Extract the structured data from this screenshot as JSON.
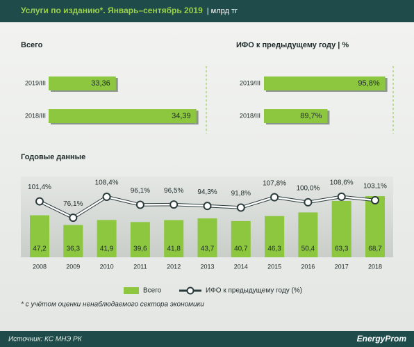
{
  "header": {
    "title": "Услуги по изданию*. Январь–сентябрь 2019",
    "unit": "| млрд тг"
  },
  "chart_data": [
    {
      "type": "hbar",
      "title": "Всего",
      "categories": [
        "2019/III",
        "2018/III"
      ],
      "values": [
        33.36,
        34.39
      ],
      "value_labels": [
        "33,36",
        "34,39"
      ],
      "color": "#8dc63f",
      "xlim": [
        32.5,
        34.5
      ]
    },
    {
      "type": "hbar",
      "title": "ИФО к предыдущему году | %",
      "categories": [
        "2019/III",
        "2018/III"
      ],
      "values": [
        95.8,
        89.7
      ],
      "value_labels": [
        "95,8%",
        "89,7%"
      ],
      "color": "#8dc63f",
      "xlim": [
        83,
        97
      ]
    },
    {
      "type": "combo",
      "title": "Годовые данные",
      "categories": [
        "2008",
        "2009",
        "2010",
        "2011",
        "2012",
        "2013",
        "2014",
        "2015",
        "2016",
        "2017",
        "2018"
      ],
      "ylim": [
        0,
        80
      ],
      "y2lim": [
        15,
        125
      ],
      "series": [
        {
          "name": "Всего",
          "type": "bar",
          "color": "#8dc63f",
          "values": [
            47.2,
            36.3,
            41.9,
            39.6,
            41.8,
            43.7,
            40.7,
            46.3,
            50.4,
            63.3,
            68.7
          ],
          "value_labels": [
            "47,2",
            "36,3",
            "41,9",
            "39,6",
            "41,8",
            "43,7",
            "40,7",
            "46,3",
            "50,4",
            "63,3",
            "68,7"
          ]
        },
        {
          "name": "ИФО к предыдущему году (%)",
          "type": "line",
          "axis": "y2",
          "color": "#ffffff",
          "values": [
            101.4,
            76.1,
            108.4,
            96.1,
            96.5,
            94.3,
            91.8,
            107.8,
            100.0,
            108.6,
            103.1
          ],
          "value_labels": [
            "101,4%",
            "76,1%",
            "108,4%",
            "96,1%",
            "96,5%",
            "94,3%",
            "91,8%",
            "107,8%",
            "100,0%",
            "108,6%",
            "103,1%"
          ]
        }
      ]
    }
  ],
  "footnote": "* с учётом оценки ненаблюдаемого сектора экономики",
  "source": "Источник: КС МНЭ РК",
  "logo": "EnergyProm"
}
